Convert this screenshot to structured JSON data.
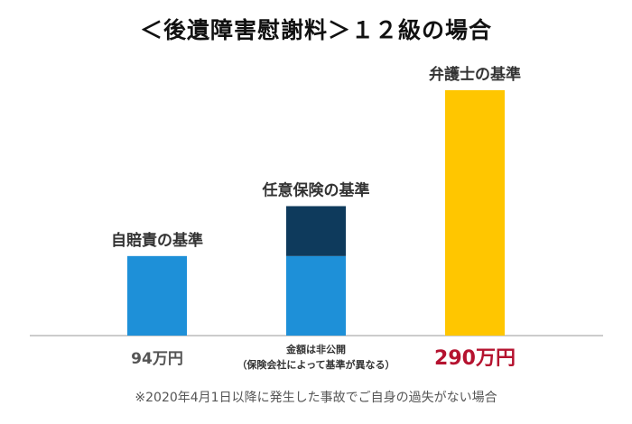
{
  "title": "＜後遺障害慰謝料＞１２級の場合",
  "footnote": "※2020年4月1日以降に発生した事故でご自身の過失がない場合",
  "colors": {
    "blue": "#1E90D8",
    "navy": "#0E3A5C",
    "gold": "#FFC600",
    "amount_default": "#555555",
    "amount_highlight": "#B5122F",
    "axis": "#999999"
  },
  "chart_data": {
    "type": "bar",
    "unit": "万円",
    "ylim": [
      0,
      300
    ],
    "categories": [
      "自賠責の基準",
      "任意保険の基準",
      "弁護士の基準"
    ],
    "bars": [
      {
        "label": "自賠責の基準",
        "value": 94,
        "value_label": "94万円",
        "color": "#1E90D8",
        "highlight": false
      },
      {
        "label": "任意保険の基準",
        "value": 94,
        "upper_value": 153,
        "value_label_lines": [
          "金額は非公開",
          "（保険会社によって基準が異なる）"
        ],
        "color": "#1E90D8",
        "upper_color": "#0E3A5C",
        "highlight": false
      },
      {
        "label": "弁護士の基準",
        "value": 290,
        "value_label": "290万円",
        "color": "#FFC600",
        "highlight": true
      }
    ]
  }
}
